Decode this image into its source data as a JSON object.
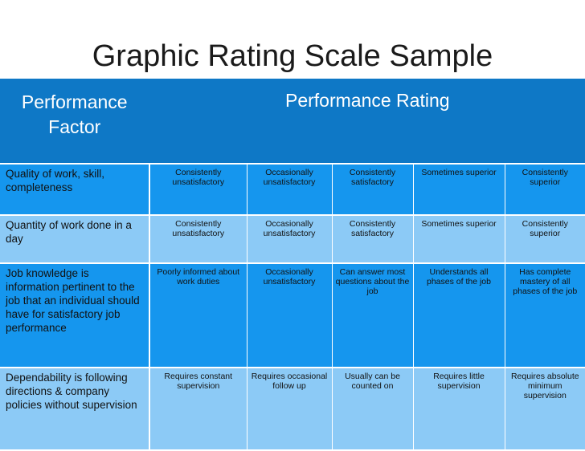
{
  "title": "Graphic Rating Scale Sample",
  "header": {
    "factor": "Performance Factor",
    "rating": "Performance Rating"
  },
  "rows": [
    {
      "factor": "Quality of work, skill, completeness",
      "ratings": [
        "Consistently unsatisfactory",
        "Occasionally unsatisfactory",
        "Consistently satisfactory",
        "Sometimes superior",
        "Consistently superior"
      ]
    },
    {
      "factor": "Quantity of work done in a day",
      "ratings": [
        "Consistently unsatisfactory",
        "Occasionally unsatisfactory",
        "Consistently satisfactory",
        "Sometimes superior",
        "Consistently superior"
      ]
    },
    {
      "factor": "Job knowledge is information pertinent to the job that an individual should have for satisfactory job performance",
      "ratings": [
        "Poorly informed about work duties",
        "Occasionally unsatisfactory",
        "Can answer most questions about the job",
        "Understands all phases of the job",
        "Has complete mastery of all phases of the job"
      ]
    },
    {
      "factor": "Dependability is following directions & company policies without supervision",
      "ratings": [
        "Requires constant supervision",
        "Requires occasional follow up",
        "Usually can be counted on",
        "Requires little supervision",
        "Requires absolute minimum supervision"
      ]
    }
  ],
  "colors": {
    "header": "#0e78c6",
    "row_dark": "#1596ee",
    "row_light": "#8ccaf6"
  }
}
